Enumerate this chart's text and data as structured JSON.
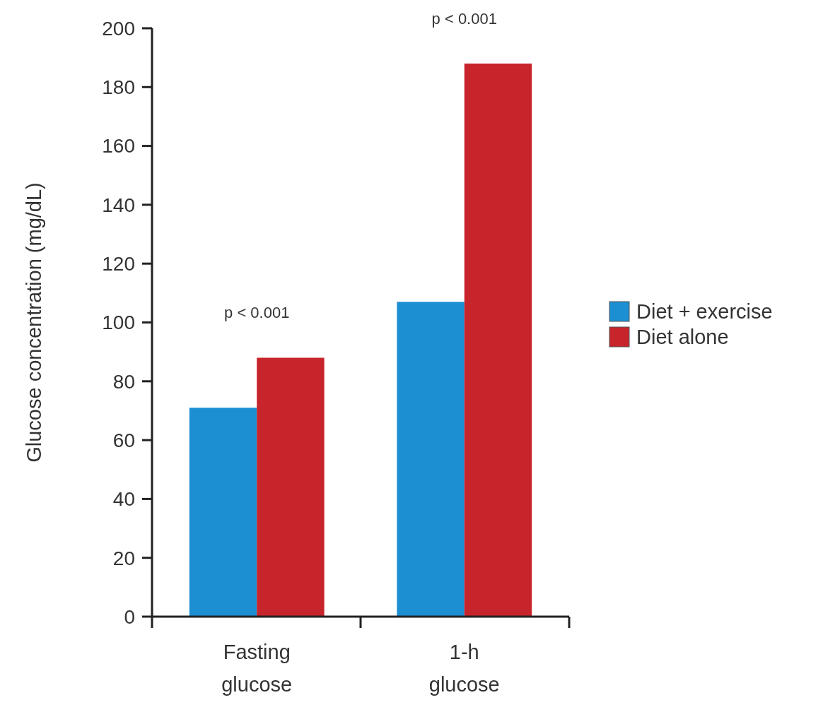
{
  "chart_data": {
    "type": "bar",
    "ylabel": "Glucose concentration (mg/dL)",
    "categories": [
      "Fasting\nglucose",
      "1-h\nglucose"
    ],
    "series": [
      {
        "name": "Diet + exercise",
        "color": "#1b8fd2",
        "values": [
          71,
          107
        ]
      },
      {
        "name": "Diet alone",
        "color": "#c8242b",
        "values": [
          88,
          188
        ]
      }
    ],
    "ylim": [
      0,
      200
    ],
    "yticks": [
      0,
      20,
      40,
      60,
      80,
      100,
      120,
      140,
      160,
      180,
      200
    ],
    "legend": "right",
    "grid": false,
    "annotations": [
      "p < 0.001",
      "p < 0.001"
    ]
  }
}
